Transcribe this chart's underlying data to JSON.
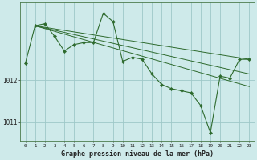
{
  "title": "Graphe pression niveau de la mer (hPa)",
  "background_color": "#ceeaea",
  "grid_color": "#9ec8c8",
  "line_color": "#2d6a2d",
  "marker_color": "#2d6a2d",
  "xlim": [
    -0.5,
    23.5
  ],
  "ylim": [
    1010.55,
    1013.85
  ],
  "series_main": {
    "x": [
      0,
      1,
      2,
      3,
      4,
      5,
      6,
      7,
      8,
      9,
      10,
      11,
      12,
      13,
      14,
      15,
      16,
      17,
      18,
      19,
      20,
      21,
      22,
      23
    ],
    "y": [
      1012.4,
      1013.3,
      1013.35,
      1013.05,
      1012.7,
      1012.85,
      1012.9,
      1012.9,
      1013.6,
      1013.4,
      1012.45,
      1012.55,
      1012.5,
      1012.15,
      1011.9,
      1011.8,
      1011.75,
      1011.7,
      1011.4,
      1010.75,
      1012.1,
      1012.05,
      1012.5,
      1012.5
    ]
  },
  "trend_lines": [
    {
      "x": [
        1,
        23
      ],
      "y": [
        1013.3,
        1012.5
      ]
    },
    {
      "x": [
        1,
        23
      ],
      "y": [
        1013.3,
        1012.15
      ]
    },
    {
      "x": [
        1,
        23
      ],
      "y": [
        1013.3,
        1011.85
      ]
    }
  ],
  "yticks": [
    1011,
    1012
  ],
  "xticks": [
    0,
    1,
    2,
    3,
    4,
    5,
    6,
    7,
    8,
    9,
    10,
    11,
    12,
    13,
    14,
    15,
    16,
    17,
    18,
    19,
    20,
    21,
    22,
    23
  ],
  "xlabel_fontsize": 6.0,
  "ytick_fontsize": 5.5,
  "xtick_fontsize": 4.2
}
